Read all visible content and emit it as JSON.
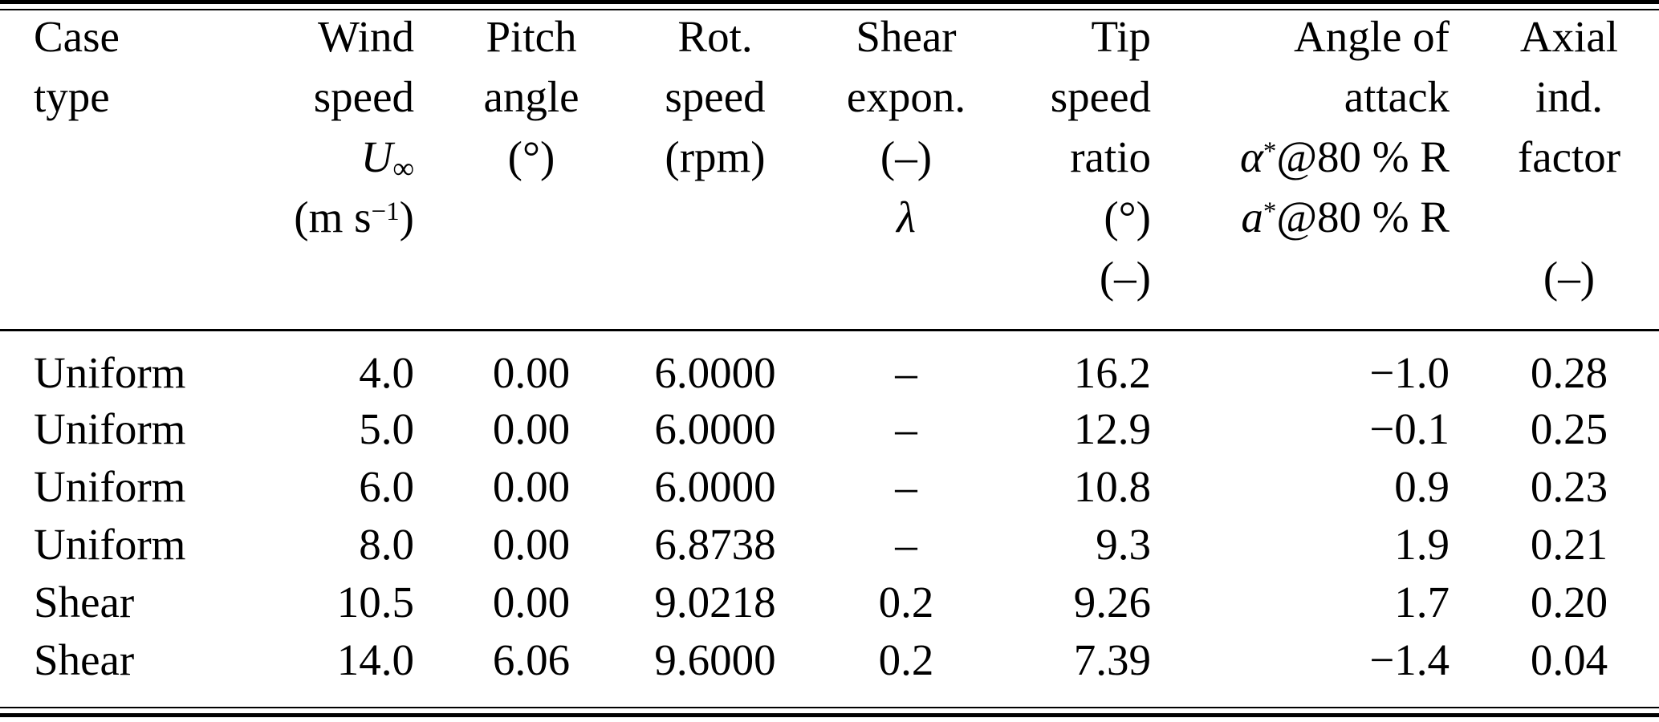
{
  "table": {
    "header": {
      "case": {
        "line1": "Case",
        "line2": "type"
      },
      "wind": {
        "line1": "Wind",
        "line2": "speed",
        "symbol": "U",
        "symbol_sub": "∞",
        "unit_open": "(m s",
        "unit_exp": "−1",
        "unit_close": ")"
      },
      "pitch": {
        "line1": "Pitch",
        "line2": "angle",
        "unit": "(°)"
      },
      "rot": {
        "line1": "Rot.",
        "line2": "speed",
        "unit": "(rpm)"
      },
      "shear": {
        "line1": "Shear",
        "line2": "expon.",
        "unit": "(–)",
        "symbol": "λ"
      },
      "tip": {
        "line1": "Tip",
        "line2": "speed",
        "line3": "ratio",
        "unit_degrees": "(°)",
        "unit_dimensionless": "(–)"
      },
      "aoa": {
        "line1": "Angle of",
        "line2": "attack",
        "alpha_symbol": "α",
        "alpha_sup": "*",
        "alpha_rest": "@80 % R",
        "a_symbol": "a",
        "a_sup": "*",
        "a_rest": "@80 % R"
      },
      "axial": {
        "line1": "Axial",
        "line2": "ind.",
        "line3": "factor",
        "unit": "(–)"
      }
    },
    "rows": [
      {
        "case": "Uniform",
        "wind": "4.0",
        "pitch": "0.00",
        "rot": "6.0000",
        "shear": "–",
        "tip": "16.2",
        "aoa": "−1.0",
        "axial": "0.28"
      },
      {
        "case": "Uniform",
        "wind": "5.0",
        "pitch": "0.00",
        "rot": "6.0000",
        "shear": "–",
        "tip": "12.9",
        "aoa": "−0.1",
        "axial": "0.25"
      },
      {
        "case": "Uniform",
        "wind": "6.0",
        "pitch": "0.00",
        "rot": "6.0000",
        "shear": "–",
        "tip": "10.8",
        "aoa": "0.9",
        "axial": "0.23"
      },
      {
        "case": "Uniform",
        "wind": "8.0",
        "pitch": "0.00",
        "rot": "6.8738",
        "shear": "–",
        "tip": "9.3",
        "aoa": "1.9",
        "axial": "0.21"
      },
      {
        "case": "Shear",
        "wind": "10.5",
        "pitch": "0.00",
        "rot": "9.0218",
        "shear": "0.2",
        "tip": "9.26",
        "aoa": "1.7",
        "axial": "0.20"
      },
      {
        "case": "Shear",
        "wind": "14.0",
        "pitch": "6.06",
        "rot": "9.6000",
        "shear": "0.2",
        "tip": "7.39",
        "aoa": "−1.4",
        "axial": "0.04"
      }
    ]
  }
}
